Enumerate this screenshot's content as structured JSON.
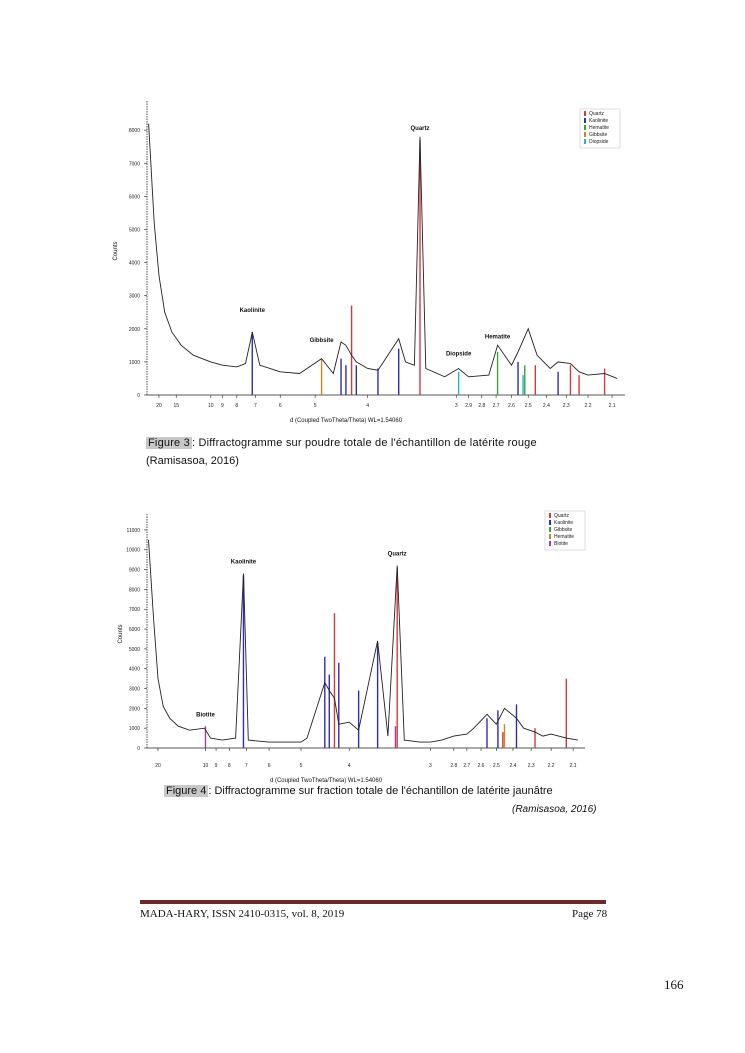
{
  "chart_data": [
    {
      "type": "line",
      "id": "fig3",
      "ylabel": "Counts",
      "xlabel": "d (Coupled TwoTheta/Theta) WL=1.54060",
      "ylim": [
        0,
        8700
      ],
      "yticks": [
        0,
        1000,
        2000,
        3000,
        4000,
        5000,
        6000,
        7000,
        8000
      ],
      "xtick_labels": [
        "20",
        "15",
        "10",
        "9",
        "8",
        "7",
        "6",
        "5",
        "4",
        "3",
        "2.9",
        "2.8",
        "2.7",
        "2.6",
        "2.5",
        "2.4",
        "2.3",
        "2.2",
        "2.1"
      ],
      "legend": [
        "Quartz",
        "Kaolinite",
        "Hematite",
        "Gibbsite",
        "Diopside"
      ],
      "legend_colors": [
        "#d43a3a",
        "#2e2eb0",
        "#3aa03a",
        "#c88a20",
        "#20b8c8"
      ],
      "annotations": [
        {
          "text": "Quartz",
          "d": 3.34,
          "counts": 8000
        },
        {
          "text": "Kaolinite",
          "d": 7.15,
          "counts": 2500
        },
        {
          "text": "Gibbsite",
          "d": 4.85,
          "counts": 1600
        },
        {
          "text": "Diopside",
          "d": 2.98,
          "counts": 1200
        },
        {
          "text": "Hematite",
          "d": 2.69,
          "counts": 1700
        }
      ],
      "pattern": [
        [
          25,
          8200
        ],
        [
          22,
          5200
        ],
        [
          20,
          3600
        ],
        [
          18,
          2500
        ],
        [
          16,
          1900
        ],
        [
          14,
          1500
        ],
        [
          12,
          1200
        ],
        [
          10,
          1000
        ],
        [
          9,
          900
        ],
        [
          8,
          850
        ],
        [
          7.5,
          950
        ],
        [
          7.15,
          1900
        ],
        [
          6.8,
          900
        ],
        [
          6,
          700
        ],
        [
          5.4,
          650
        ],
        [
          4.85,
          1100
        ],
        [
          4.6,
          650
        ],
        [
          4.45,
          1600
        ],
        [
          4.36,
          1500
        ],
        [
          4.26,
          1200
        ],
        [
          4.18,
          1000
        ],
        [
          4.0,
          800
        ],
        [
          3.85,
          750
        ],
        [
          3.58,
          1700
        ],
        [
          3.5,
          1000
        ],
        [
          3.4,
          900
        ],
        [
          3.34,
          7800
        ],
        [
          3.28,
          800
        ],
        [
          3.1,
          550
        ],
        [
          2.98,
          800
        ],
        [
          2.9,
          550
        ],
        [
          2.75,
          600
        ],
        [
          2.69,
          1500
        ],
        [
          2.6,
          900
        ],
        [
          2.56,
          1300
        ],
        [
          2.5,
          2000
        ],
        [
          2.45,
          1200
        ],
        [
          2.38,
          800
        ],
        [
          2.34,
          1000
        ],
        [
          2.28,
          950
        ],
        [
          2.24,
          700
        ],
        [
          2.2,
          600
        ],
        [
          2.13,
          650
        ],
        [
          2.08,
          500
        ]
      ],
      "sticks": [
        {
          "phase": "Kaolinite",
          "d": 7.15,
          "counts": 1900
        },
        {
          "phase": "Gibbsite",
          "d": 4.85,
          "counts": 1100
        },
        {
          "phase": "Quartz",
          "d": 4.26,
          "counts": 2700
        },
        {
          "phase": "Kaolinite",
          "d": 4.45,
          "counts": 1100
        },
        {
          "phase": "Kaolinite",
          "d": 4.36,
          "counts": 900
        },
        {
          "phase": "Kaolinite",
          "d": 4.18,
          "counts": 900
        },
        {
          "phase": "Kaolinite",
          "d": 3.85,
          "counts": 800
        },
        {
          "phase": "Kaolinite",
          "d": 3.58,
          "counts": 1400
        },
        {
          "phase": "Quartz",
          "d": 3.34,
          "counts": 7700
        },
        {
          "phase": "Diopside",
          "d": 2.98,
          "counts": 700
        },
        {
          "phase": "Hematite",
          "d": 2.69,
          "counts": 1300
        },
        {
          "phase": "Kaolinite",
          "d": 2.56,
          "counts": 1000
        },
        {
          "phase": "Hematite",
          "d": 2.52,
          "counts": 900
        },
        {
          "phase": "Quartz",
          "d": 2.46,
          "counts": 900
        },
        {
          "phase": "Diopside",
          "d": 2.53,
          "counts": 600
        },
        {
          "phase": "Kaolinite",
          "d": 2.34,
          "counts": 700
        },
        {
          "phase": "Quartz",
          "d": 2.28,
          "counts": 900
        },
        {
          "phase": "Quartz",
          "d": 2.24,
          "counts": 600
        },
        {
          "phase": "Quartz",
          "d": 2.13,
          "counts": 800
        }
      ]
    },
    {
      "type": "line",
      "id": "fig4",
      "ylabel": "Counts",
      "xlabel": "d (Coupled TwoTheta/Theta) WL=1.54060",
      "ylim": [
        0,
        11500
      ],
      "yticks": [
        0,
        1000,
        2000,
        3000,
        4000,
        5000,
        6000,
        7000,
        8000,
        9000,
        10000,
        11000
      ],
      "xtick_labels": [
        "20",
        "10",
        "9",
        "8",
        "7",
        "6",
        "5",
        "4",
        "3",
        "2.8",
        "2.7",
        "2.6",
        "2.5",
        "2.4",
        "2.3",
        "2.2",
        "2.1"
      ],
      "legend": [
        "Quartz",
        "Kaolinite",
        "Gibbsite",
        "Hematite",
        "Biotite"
      ],
      "legend_colors": [
        "#d43a3a",
        "#2e2eb0",
        "#3aa03a",
        "#c88a20",
        "#a040a0"
      ],
      "annotations": [
        {
          "text": "Kaolinite",
          "d": 7.15,
          "counts": 9300
        },
        {
          "text": "Quartz",
          "d": 3.34,
          "counts": 9700
        },
        {
          "text": "Biotite",
          "d": 10.0,
          "counts": 1600
        }
      ],
      "pattern": [
        [
          25,
          10500
        ],
        [
          22,
          6500
        ],
        [
          20,
          3500
        ],
        [
          18,
          2100
        ],
        [
          16,
          1500
        ],
        [
          14,
          1100
        ],
        [
          12,
          900
        ],
        [
          10.1,
          1000
        ],
        [
          9.5,
          500
        ],
        [
          8.5,
          400
        ],
        [
          7.6,
          500
        ],
        [
          7.15,
          8800
        ],
        [
          6.9,
          400
        ],
        [
          6,
          300
        ],
        [
          5,
          300
        ],
        [
          4.85,
          500
        ],
        [
          4.45,
          3300
        ],
        [
          4.36,
          2900
        ],
        [
          4.26,
          2500
        ],
        [
          4.18,
          1200
        ],
        [
          4.0,
          1300
        ],
        [
          3.85,
          900
        ],
        [
          3.58,
          5400
        ],
        [
          3.45,
          600
        ],
        [
          3.34,
          9200
        ],
        [
          3.26,
          400
        ],
        [
          3.1,
          300
        ],
        [
          3.0,
          300
        ],
        [
          2.9,
          400
        ],
        [
          2.8,
          600
        ],
        [
          2.7,
          700
        ],
        [
          2.65,
          1000
        ],
        [
          2.56,
          1700
        ],
        [
          2.5,
          1200
        ],
        [
          2.45,
          2000
        ],
        [
          2.38,
          1500
        ],
        [
          2.34,
          1000
        ],
        [
          2.28,
          800
        ],
        [
          2.24,
          600
        ],
        [
          2.2,
          700
        ],
        [
          2.13,
          500
        ],
        [
          2.08,
          400
        ]
      ],
      "sticks": [
        {
          "phase": "Biotite",
          "d": 10.0,
          "counts": 1100
        },
        {
          "phase": "Kaolinite",
          "d": 7.15,
          "counts": 8700
        },
        {
          "phase": "Kaolinite",
          "d": 4.45,
          "counts": 4600
        },
        {
          "phase": "Quartz",
          "d": 4.26,
          "counts": 6800
        },
        {
          "phase": "Kaolinite",
          "d": 4.36,
          "counts": 3700
        },
        {
          "phase": "Kaolinite",
          "d": 4.18,
          "counts": 4300
        },
        {
          "phase": "Kaolinite",
          "d": 3.85,
          "counts": 2900
        },
        {
          "phase": "Kaolinite",
          "d": 3.58,
          "counts": 5300
        },
        {
          "phase": "Quartz",
          "d": 3.34,
          "counts": 9100
        },
        {
          "phase": "Biotite",
          "d": 3.36,
          "counts": 1100
        },
        {
          "phase": "Kaolinite",
          "d": 2.56,
          "counts": 1500
        },
        {
          "phase": "Kaolinite",
          "d": 2.49,
          "counts": 1900
        },
        {
          "phase": "Kaolinite",
          "d": 2.38,
          "counts": 2200
        },
        {
          "phase": "Hematite",
          "d": 2.45,
          "counts": 1200
        },
        {
          "phase": "Quartz",
          "d": 2.46,
          "counts": 800
        },
        {
          "phase": "Quartz",
          "d": 2.28,
          "counts": 1000
        },
        {
          "phase": "Quartz",
          "d": 2.13,
          "counts": 3500
        }
      ]
    }
  ],
  "captions": {
    "fig3_label": "Figure 3",
    "fig3_text": ": Diffractogramme sur poudre totale de l'échantillon de latérite rouge",
    "fig3_source": "(Ramisasoa, 2016)",
    "fig4_label": "Figure 4",
    "fig4_text": ": Diffractogramme sur fraction totale de l'échantillon de latérite jaunâtre",
    "fig4_source": "(Ramisasoa, 2016)"
  },
  "footer": {
    "left": "MADA-HARY, ISSN 2410-0315, vol. 8, 2019",
    "right": "Page 78"
  },
  "page_number": "166"
}
